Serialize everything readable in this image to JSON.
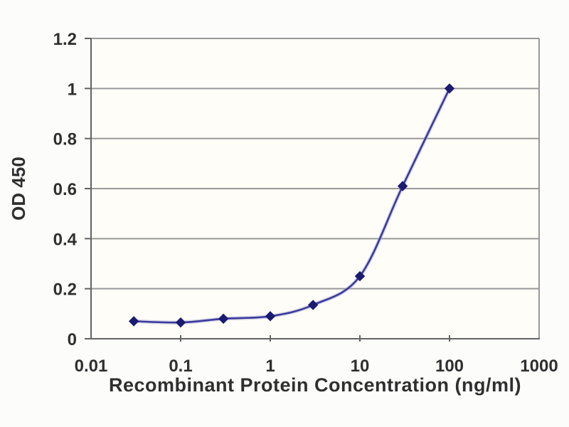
{
  "chart_data": {
    "type": "line",
    "title": "",
    "xlabel": "Recombinant Protein Concentration (ng/ml)",
    "ylabel": "OD 450",
    "x_scale": "log",
    "xlim": [
      0.01,
      1000
    ],
    "ylim": [
      0,
      1.2
    ],
    "x": [
      0.03,
      0.1,
      0.3,
      1,
      3,
      10,
      30,
      100
    ],
    "y": [
      0.07,
      0.065,
      0.08,
      0.09,
      0.135,
      0.25,
      0.61,
      1.0
    ],
    "x_ticks": [
      "0.01",
      "0.1",
      "1",
      "10",
      "100",
      "1000"
    ],
    "x_tick_values": [
      0.01,
      0.1,
      1,
      10,
      100,
      1000
    ],
    "y_ticks": [
      "0",
      "0.2",
      "0.4",
      "0.6",
      "0.8",
      "1",
      "1.2"
    ],
    "y_tick_values": [
      0,
      0.2,
      0.4,
      0.6,
      0.8,
      1,
      1.2
    ],
    "grid": "horizontal",
    "legend": "none",
    "marker": "diamond",
    "line_style": "smooth",
    "colors": {
      "line": "#3a3a9c",
      "line_halo": "#9c9cd0",
      "marker": "#1b1b72",
      "grid": "#989898",
      "axis": "#636363",
      "text": "#2f2f2f",
      "plot_background": "#fefdf8"
    }
  }
}
